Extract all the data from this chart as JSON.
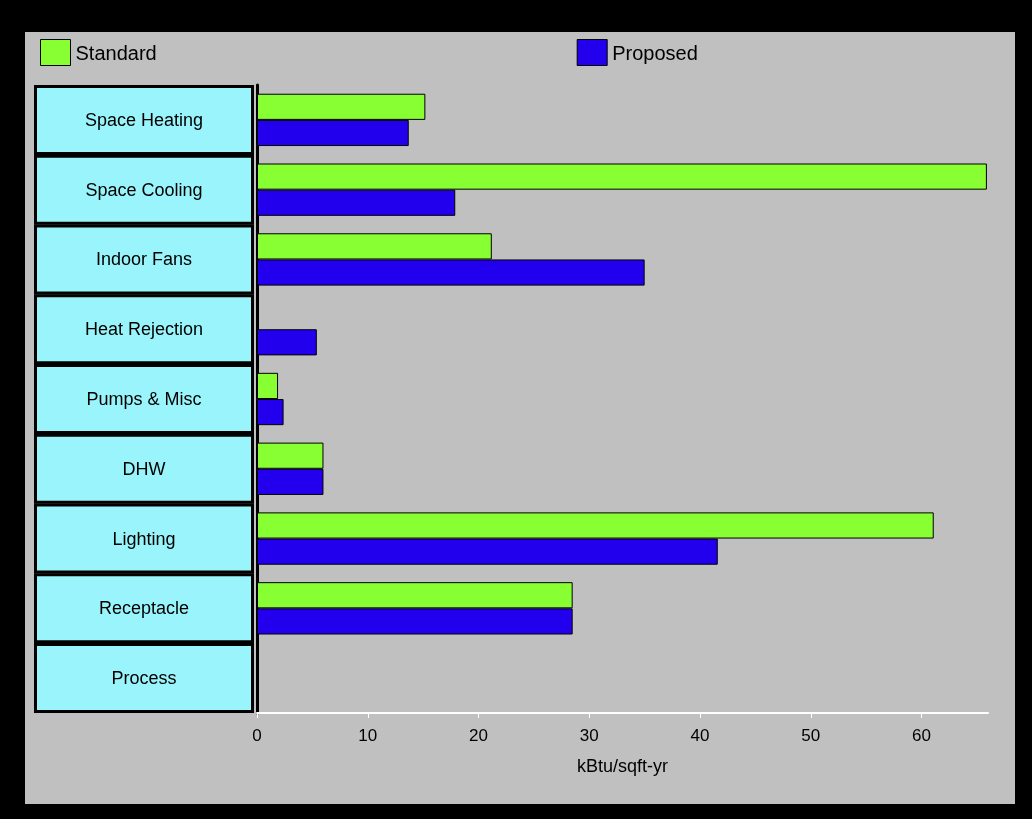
{
  "chart_data": {
    "type": "bar",
    "orientation": "horizontal",
    "xlabel": "kBtu/sqft-yr",
    "categories": [
      "Space Heating",
      "Space Cooling",
      "Indoor Fans",
      "Heat Rejection",
      "Pumps & Misc",
      "DHW",
      "Lighting",
      "Receptacle",
      "Process"
    ],
    "series": [
      {
        "name": "Standard",
        "color": "#88ff33",
        "values": [
          15.2,
          65.9,
          21.2,
          0,
          1.9,
          6.0,
          61.1,
          28.5,
          0
        ]
      },
      {
        "name": "Proposed",
        "color": "#2200ee",
        "values": [
          13.7,
          17.9,
          35.0,
          5.4,
          2.4,
          6.0,
          41.6,
          28.5,
          0
        ]
      }
    ],
    "xlim": [
      0,
      66
    ],
    "xticks": [
      0,
      10,
      20,
      30,
      40,
      50,
      60
    ],
    "grid": false,
    "legend": "top"
  }
}
